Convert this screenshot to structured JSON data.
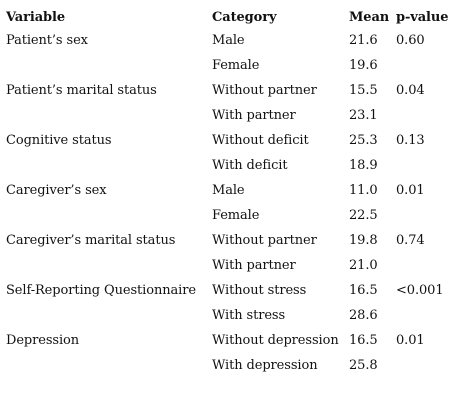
{
  "table": {
    "headers": [
      "Variable",
      "Category",
      "Mean",
      "p-value"
    ],
    "rows": [
      {
        "variable": "Patient’s sex",
        "category": "Male",
        "mean": "21.6",
        "p_value": "0.60"
      },
      {
        "variable": "",
        "category": "Female",
        "mean": "19.6",
        "p_value": ""
      },
      {
        "variable": "Patient’s marital status",
        "category": "Without partner",
        "mean": "15.5",
        "p_value": "0.04"
      },
      {
        "variable": "",
        "category": "With partner",
        "mean": "23.1",
        "p_value": ""
      },
      {
        "variable": "Cognitive status",
        "category": "Without deficit",
        "mean": "25.3",
        "p_value": "0.13"
      },
      {
        "variable": "",
        "category": "With deficit",
        "mean": "18.9",
        "p_value": ""
      },
      {
        "variable": "Caregiver’s sex",
        "category": "Male",
        "mean": "11.0",
        "p_value": "0.01"
      },
      {
        "variable": "",
        "category": "Female",
        "mean": "22.5",
        "p_value": ""
      },
      {
        "variable": "Caregiver’s marital status",
        "category": "Without partner",
        "mean": "19.8",
        "p_value": "0.74"
      },
      {
        "variable": "",
        "category": "With partner",
        "mean": "21.0",
        "p_value": ""
      },
      {
        "variable": "Self-Reporting Questionnaire",
        "category": "Without stress",
        "mean": "16.5",
        "p_value": "<0.001"
      },
      {
        "variable": "",
        "category": "With stress",
        "mean": "28.6",
        "p_value": ""
      },
      {
        "variable": "Depression",
        "category": "Without depression",
        "mean": "16.5",
        "p_value": "0.01"
      },
      {
        "variable": "",
        "category": "With depression",
        "mean": "25.8",
        "p_value": ""
      }
    ]
  }
}
